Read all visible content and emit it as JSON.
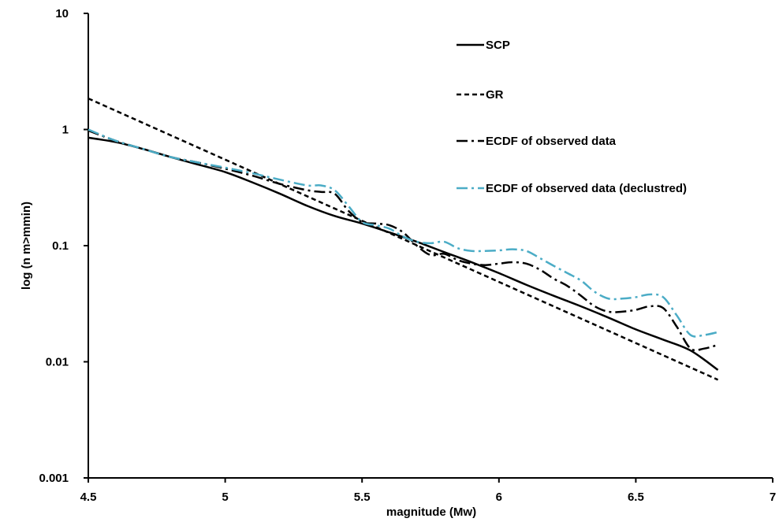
{
  "chart_data": {
    "type": "line",
    "title": "",
    "xlabel": "magnitude (Mw)",
    "ylabel": "log (n m>mmin)",
    "x_scale": "linear",
    "y_scale": "log",
    "xlim": [
      4.5,
      7
    ],
    "ylim": [
      0.001,
      10
    ],
    "x_ticks": [
      4.5,
      5,
      5.5,
      6,
      6.5,
      7
    ],
    "x_tick_labels": [
      "4.5",
      "5",
      "5.5",
      "6",
      "6.5",
      "7"
    ],
    "y_ticks": [
      0.001,
      0.01,
      0.1,
      1,
      10
    ],
    "y_tick_labels": [
      "0.001",
      "0.01",
      "0.1",
      "1",
      "10"
    ],
    "grid": false,
    "legend_position": "top-right",
    "series": [
      {
        "name": "SCP",
        "color": "#000000",
        "dash": "solid",
        "x": [
          4.5,
          4.6,
          4.7,
          4.8,
          4.9,
          5.0,
          5.1,
          5.2,
          5.3,
          5.4,
          5.5,
          5.6,
          5.7,
          5.8,
          5.9,
          6.0,
          6.1,
          6.2,
          6.3,
          6.4,
          6.5,
          6.6,
          6.7,
          6.8
        ],
        "y": [
          0.85,
          0.78,
          0.68,
          0.58,
          0.5,
          0.43,
          0.35,
          0.28,
          0.22,
          0.18,
          0.155,
          0.13,
          0.108,
          0.088,
          0.072,
          0.058,
          0.046,
          0.037,
          0.03,
          0.024,
          0.019,
          0.0155,
          0.0125,
          0.0085
        ]
      },
      {
        "name": "GR",
        "color": "#000000",
        "dash": "short-dash",
        "x": [
          4.5,
          6.8
        ],
        "y": [
          1.85,
          0.007
        ]
      },
      {
        "name": "ECDF of observed data",
        "color": "#000000",
        "dash": "long-dash-dot",
        "x": [
          4.5,
          4.6,
          4.7,
          4.8,
          4.9,
          5.0,
          5.1,
          5.2,
          5.3,
          5.35,
          5.4,
          5.45,
          5.5,
          5.55,
          5.6,
          5.65,
          5.7,
          5.75,
          5.8,
          5.85,
          5.9,
          5.95,
          6.0,
          6.05,
          6.1,
          6.15,
          6.2,
          6.25,
          6.3,
          6.35,
          6.4,
          6.45,
          6.5,
          6.55,
          6.6,
          6.65,
          6.7,
          6.75,
          6.8
        ],
        "y": [
          0.98,
          0.8,
          0.68,
          0.58,
          0.52,
          0.46,
          0.4,
          0.34,
          0.3,
          0.29,
          0.28,
          0.2,
          0.16,
          0.155,
          0.15,
          0.13,
          0.1,
          0.083,
          0.085,
          0.075,
          0.07,
          0.068,
          0.07,
          0.072,
          0.07,
          0.062,
          0.052,
          0.045,
          0.037,
          0.03,
          0.027,
          0.027,
          0.028,
          0.03,
          0.029,
          0.02,
          0.013,
          0.013,
          0.014
        ]
      },
      {
        "name": "ECDF of observed data (declustred)",
        "color": "#4bacc6",
        "dash": "long-dash-dot",
        "x": [
          4.5,
          4.6,
          4.7,
          4.8,
          4.9,
          5.0,
          5.1,
          5.2,
          5.3,
          5.35,
          5.4,
          5.45,
          5.5,
          5.55,
          5.6,
          5.65,
          5.7,
          5.75,
          5.8,
          5.85,
          5.9,
          5.95,
          6.0,
          6.05,
          6.1,
          6.15,
          6.2,
          6.25,
          6.3,
          6.35,
          6.4,
          6.45,
          6.5,
          6.55,
          6.6,
          6.65,
          6.7,
          6.75,
          6.8
        ],
        "y": [
          1.0,
          0.8,
          0.68,
          0.58,
          0.52,
          0.47,
          0.42,
          0.37,
          0.33,
          0.33,
          0.3,
          0.22,
          0.16,
          0.15,
          0.14,
          0.12,
          0.108,
          0.105,
          0.108,
          0.095,
          0.09,
          0.09,
          0.091,
          0.093,
          0.09,
          0.078,
          0.067,
          0.058,
          0.05,
          0.04,
          0.035,
          0.035,
          0.036,
          0.038,
          0.036,
          0.025,
          0.017,
          0.017,
          0.018
        ]
      }
    ]
  }
}
